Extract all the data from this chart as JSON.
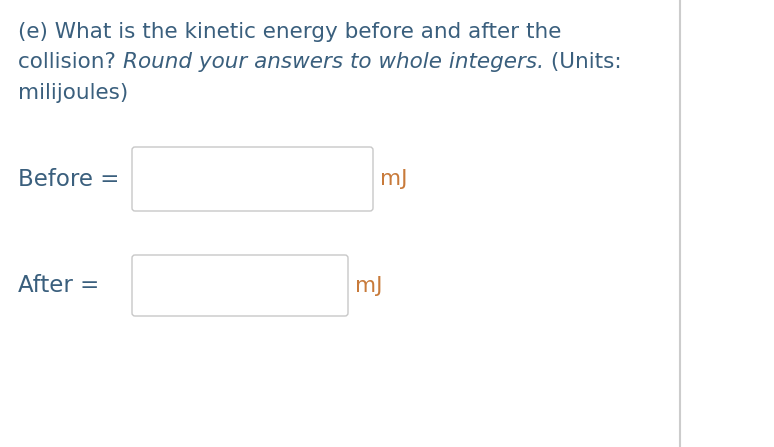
{
  "line1": "(e) What is the kinetic energy before and after the",
  "line2_normal1": "collision? ",
  "line2_italic": "Round your answers to whole integers.",
  "line2_normal2": " (Units:",
  "line3": "milijoules)",
  "label_before": "Before =",
  "label_after": "After =",
  "unit": "mJ",
  "text_color": "#3a5f7d",
  "mj_color": "#c87a3a",
  "box_edge_color": "#c8c8c8",
  "box_fill": "#ffffff",
  "bg_color": "#ffffff",
  "sep_color": "#cccccc",
  "font_size": 15.5,
  "figsize": [
    7.74,
    4.47
  ],
  "dpi": 100
}
